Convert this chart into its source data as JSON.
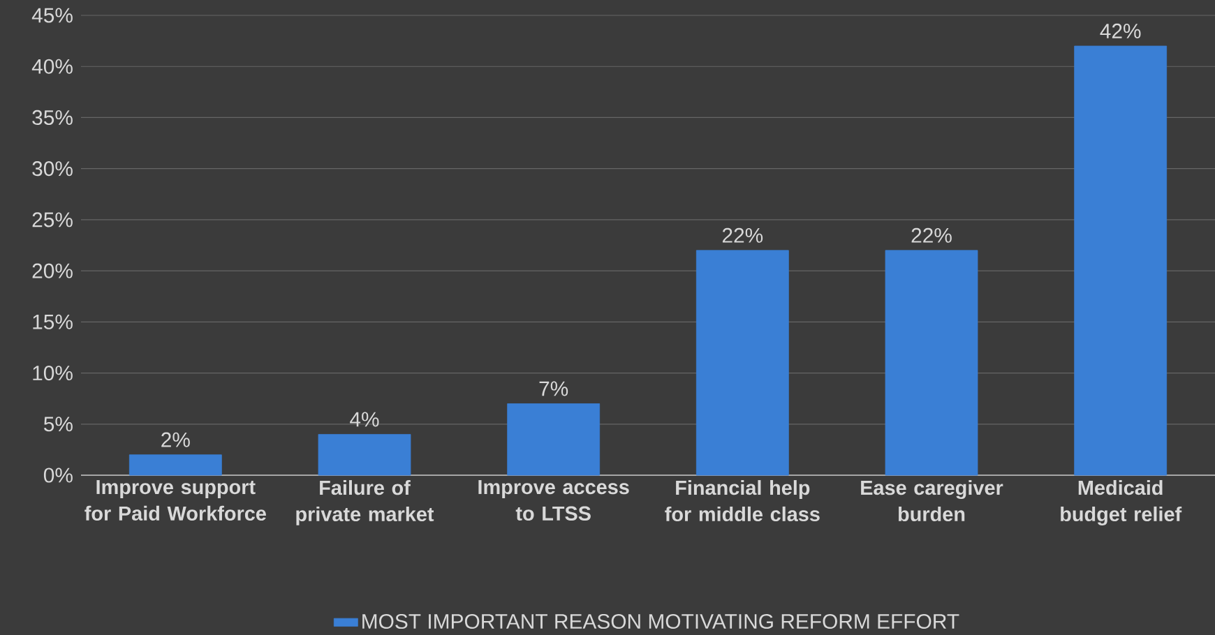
{
  "chart_data": {
    "type": "bar",
    "categories": [
      "Improve support for Paid Workforce",
      "Failure of private market",
      "Improve access to LTSS",
      "Financial help for middle class",
      "Ease caregiver burden",
      "Medicaid budget relief"
    ],
    "series": [
      {
        "name": "MOST IMPORTANT REASON MOTIVATING REFORM EFFORT",
        "color": "#3a7fd5",
        "values": [
          2,
          4,
          7,
          22,
          22,
          42
        ],
        "value_labels": [
          "2%",
          "4%",
          "7%",
          "22%",
          "22%",
          "42%"
        ]
      }
    ],
    "ylim": [
      0,
      45
    ],
    "yticks": [
      {
        "value": 0,
        "label": "0%"
      },
      {
        "value": 5,
        "label": "5%"
      },
      {
        "value": 10,
        "label": "10%"
      },
      {
        "value": 15,
        "label": "15%"
      },
      {
        "value": 20,
        "label": "20%"
      },
      {
        "value": 25,
        "label": "25%"
      },
      {
        "value": 30,
        "label": "30%"
      },
      {
        "value": 35,
        "label": "35%"
      },
      {
        "value": 40,
        "label": "40%"
      },
      {
        "value": 45,
        "label": "45%"
      }
    ],
    "grid": "y",
    "legend": "bottom"
  }
}
